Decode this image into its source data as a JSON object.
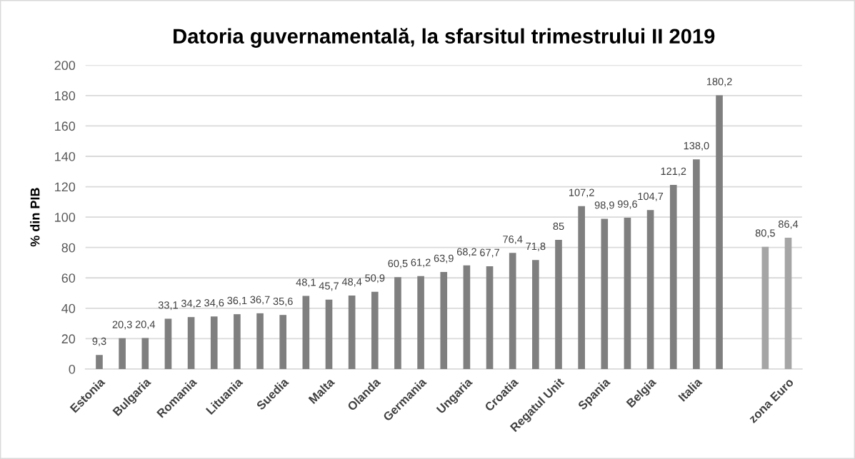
{
  "chart_data": {
    "type": "bar",
    "title": "Datoria guvernamentală, la sfarsitul trimestrului II 2019",
    "ylabel": "% din PIB",
    "categories": [
      "Estonia",
      null,
      "Bulgaria",
      null,
      "Romania",
      null,
      "Lituania",
      null,
      "Suedia",
      null,
      "Malta",
      null,
      "Olanda",
      null,
      "Germania",
      null,
      "Ungaria",
      null,
      "Croatia",
      null,
      "Regatul Unit",
      null,
      "Spania",
      null,
      "Belgia",
      null,
      "Italia",
      null,
      null,
      null,
      "zona Euro"
    ],
    "values": [
      9.3,
      20.3,
      20.4,
      33.1,
      34.2,
      34.6,
      36.1,
      36.7,
      35.6,
      48.1,
      45.7,
      48.4,
      50.9,
      60.5,
      61.2,
      63.9,
      68.2,
      67.7,
      76.4,
      71.8,
      85,
      107.2,
      98.9,
      99.6,
      104.7,
      121.2,
      138.0,
      180.2,
      null,
      80.5,
      86.4
    ],
    "value_labels": [
      "9,3",
      "20,3",
      "20,4",
      "33,1",
      "34,2",
      "34,6",
      "36,1",
      "36,7",
      "35,6",
      "48,1",
      "45,7",
      "48,4",
      "50,9",
      "60,5",
      "61,2",
      "63,9",
      "68,2",
      "67,7",
      "76,4",
      "71,8",
      "85",
      "107,2",
      "98,9",
      "99,6",
      "104,7",
      "121,2",
      "138,0",
      "180,2",
      null,
      "80,5",
      "86,4"
    ],
    "colors": [
      "#7f7f7f",
      "#7f7f7f",
      "#7f7f7f",
      "#7f7f7f",
      "#7f7f7f",
      "#7f7f7f",
      "#7f7f7f",
      "#7f7f7f",
      "#7f7f7f",
      "#7f7f7f",
      "#7f7f7f",
      "#7f7f7f",
      "#7f7f7f",
      "#7f7f7f",
      "#7f7f7f",
      "#7f7f7f",
      "#7f7f7f",
      "#7f7f7f",
      "#7f7f7f",
      "#7f7f7f",
      "#7f7f7f",
      "#7f7f7f",
      "#7f7f7f",
      "#7f7f7f",
      "#7f7f7f",
      "#7f7f7f",
      "#7f7f7f",
      "#7f7f7f",
      "#a5a5a5",
      "#a5a5a5",
      "#a5a5a5"
    ],
    "ylim": [
      0,
      200
    ],
    "yticks": [
      0,
      20,
      40,
      60,
      80,
      100,
      120,
      140,
      160,
      180,
      200
    ],
    "grid": "y"
  }
}
